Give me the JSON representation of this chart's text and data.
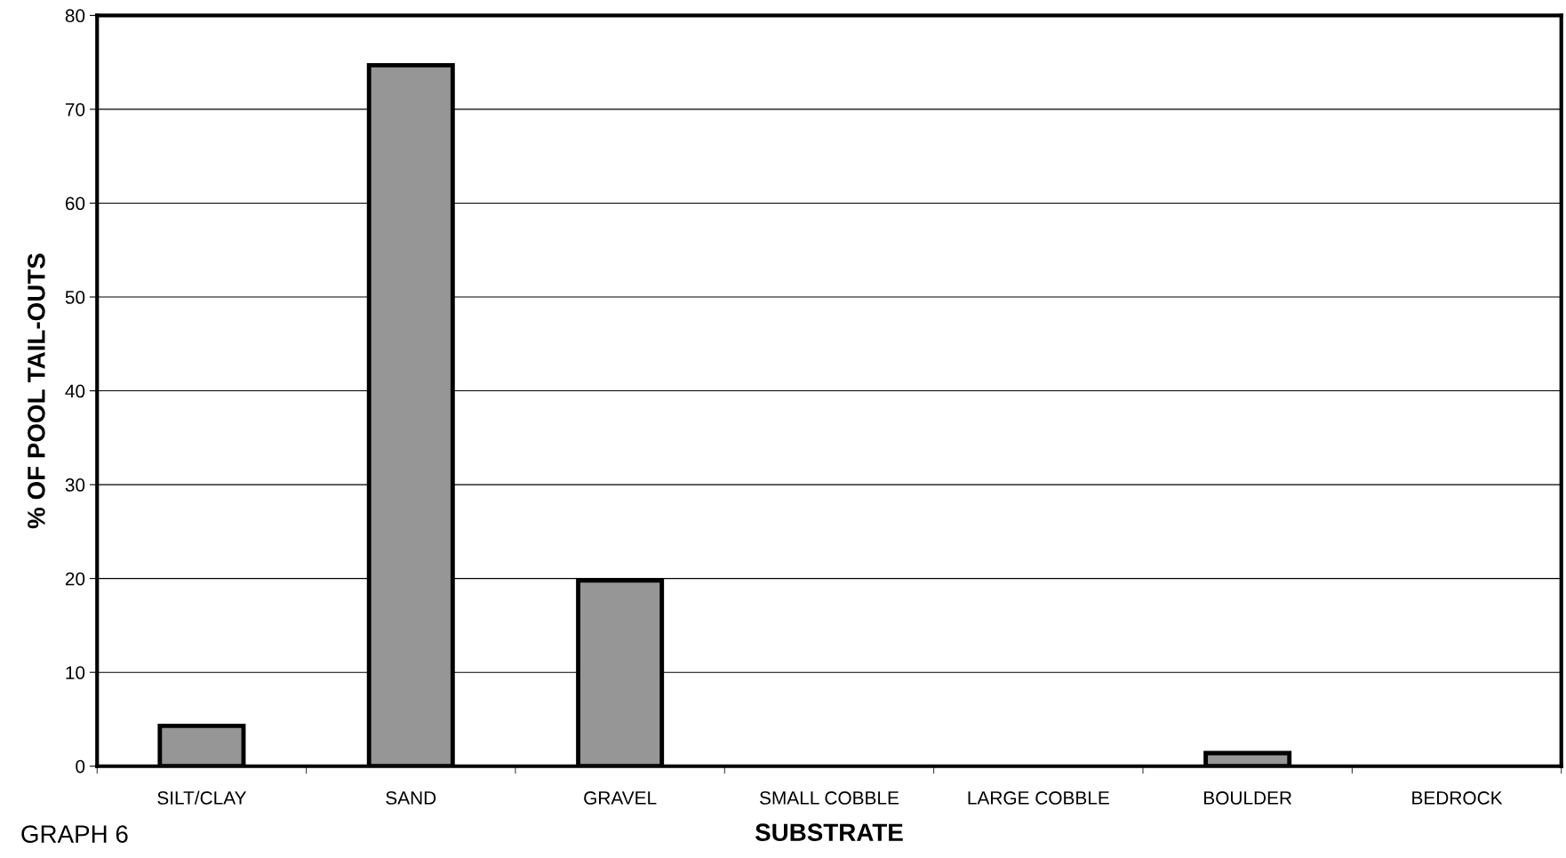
{
  "chart_data": {
    "type": "bar",
    "xlabel": "SUBSTRATE",
    "ylabel": "% OF POOL TAIL-OUTS",
    "categories": [
      "SILT/CLAY",
      "SAND",
      "GRAVEL",
      "SMALL COBBLE",
      "LARGE COBBLE",
      "BOULDER",
      "BEDROCK"
    ],
    "values": [
      4.3,
      74.7,
      19.8,
      0,
      0,
      1.4,
      0
    ],
    "color": "#969696",
    "ylim": [
      0,
      80
    ],
    "yticks": [
      0,
      10,
      20,
      30,
      40,
      50,
      60,
      70,
      80
    ],
    "grid": "y",
    "annotations": [
      "GRAPH 6"
    ]
  }
}
